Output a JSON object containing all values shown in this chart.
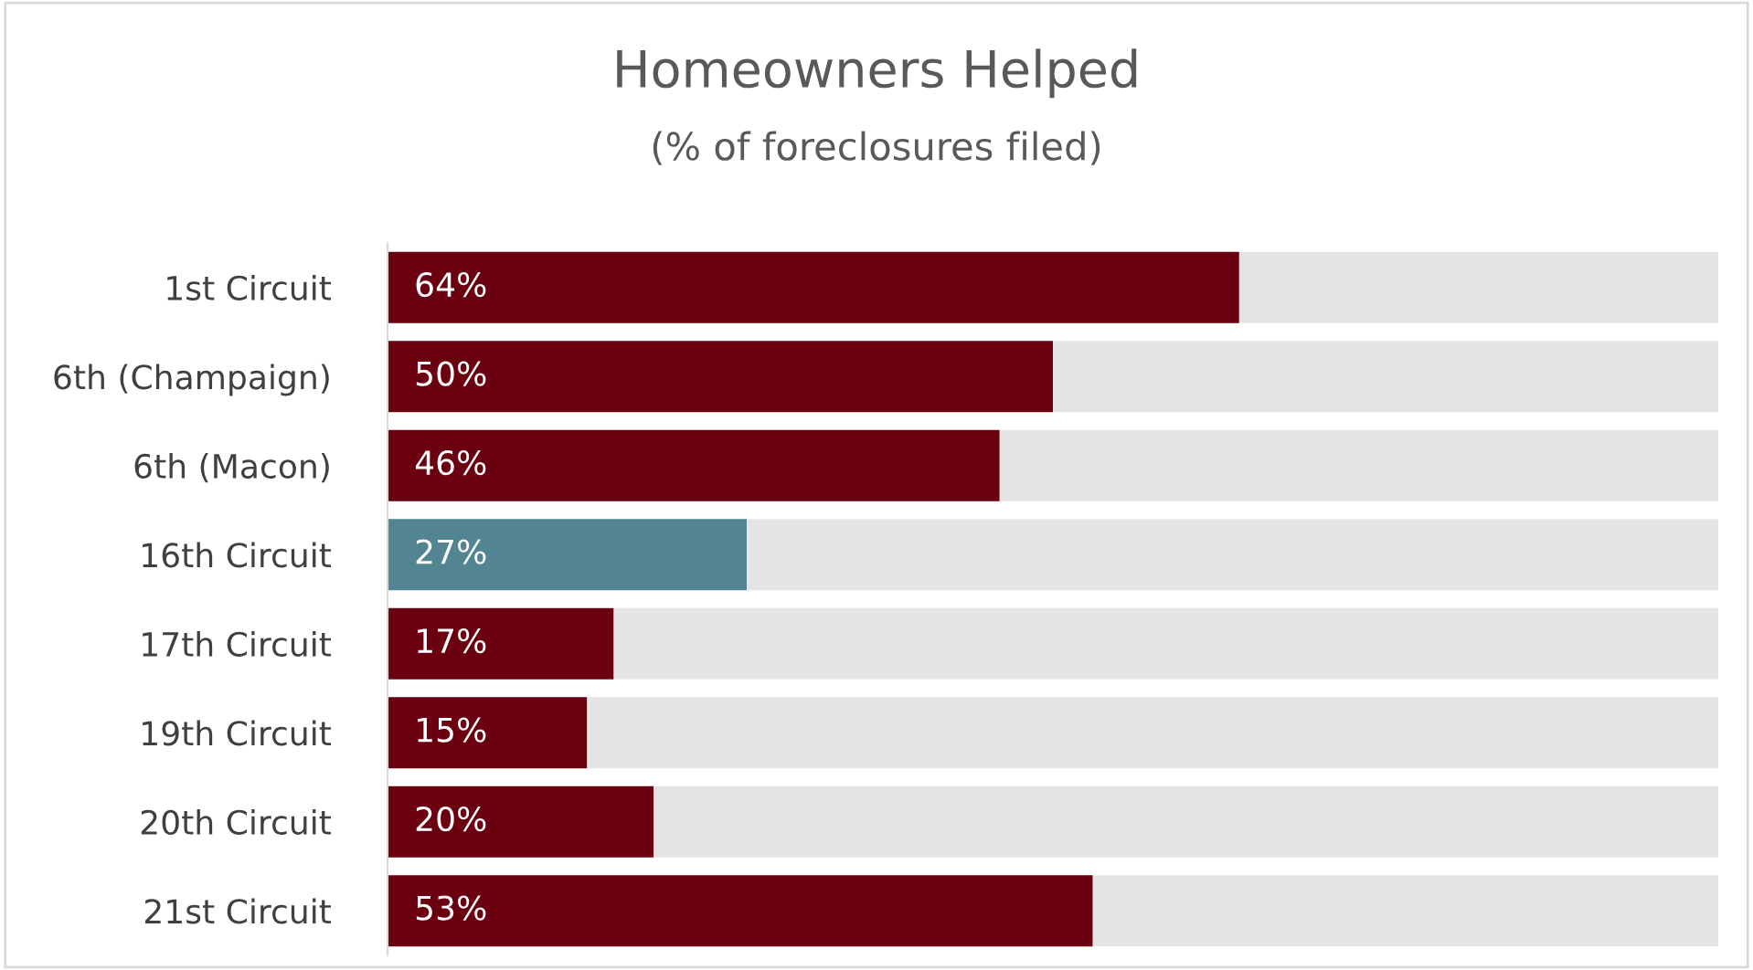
{
  "chart_data": {
    "type": "bar",
    "orientation": "horizontal",
    "stacked": true,
    "title": "Homeowners Helped",
    "subtitle": "(% of foreclosures filed)",
    "categories": [
      "1st Circuit",
      "6th (Champaign)",
      "6th (Macon)",
      "16th Circuit",
      "17th Circuit",
      "19th Circuit",
      "20th Circuit",
      "21st Circuit"
    ],
    "series": [
      {
        "colors": [
          "#6b0010",
          "#6b0010",
          "#6b0010",
          "#528591",
          "#6b0010",
          "#6b0010",
          "#6b0010",
          "#6b0010"
        ],
        "values": [
          64,
          50,
          46,
          27,
          17,
          15,
          20,
          53
        ],
        "value_labels": [
          "64%",
          "50%",
          "46%",
          "27%",
          "17%",
          "15%",
          "20%",
          "53%"
        ]
      },
      {
        "color": "#e4e4e4",
        "values": [
          36,
          50,
          54,
          73,
          83,
          85,
          80,
          47
        ]
      }
    ],
    "xlim": [
      0,
      100
    ],
    "tick_labels": "y",
    "grid": false,
    "legend": false
  }
}
